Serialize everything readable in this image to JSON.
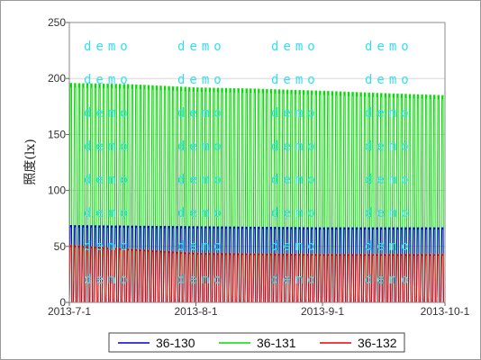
{
  "chart_data": {
    "type": "line",
    "title": "",
    "xlabel": "",
    "ylabel": "照度(lx)",
    "ylim": [
      0,
      250
    ],
    "yticks": [
      "0",
      "50",
      "100",
      "150",
      "200",
      "250"
    ],
    "xticks": [
      "2013-7-1",
      "2013-8-1",
      "2013-9-1",
      "2013-10-1"
    ],
    "xlim": [
      "2013-07-01",
      "2013-10-01"
    ],
    "grid": true,
    "legend_position": "bottom",
    "watermark": "demo",
    "series": [
      {
        "name": "36-131",
        "color": "#00dd00",
        "daily_peak": [
          {
            "date": "2013-07-01",
            "value": 196
          },
          {
            "date": "2013-07-15",
            "value": 195
          },
          {
            "date": "2013-08-01",
            "value": 192
          },
          {
            "date": "2013-08-15",
            "value": 191
          },
          {
            "date": "2013-09-01",
            "value": 189
          },
          {
            "date": "2013-09-15",
            "value": 187
          },
          {
            "date": "2013-10-01",
            "value": 185
          }
        ],
        "night_low": 0
      },
      {
        "name": "36-130",
        "color": "#0000cc",
        "daily_peak": [
          {
            "date": "2013-07-01",
            "value": 69
          },
          {
            "date": "2013-08-01",
            "value": 68
          },
          {
            "date": "2013-09-01",
            "value": 67
          },
          {
            "date": "2013-10-01",
            "value": 67
          }
        ],
        "night_low": 0
      },
      {
        "name": "36-132",
        "color": "#ee0000",
        "daily_peak": [
          {
            "date": "2013-07-01",
            "value": 51
          },
          {
            "date": "2013-08-01",
            "value": 44
          },
          {
            "date": "2013-09-01",
            "value": 43
          },
          {
            "date": "2013-10-01",
            "value": 43
          }
        ],
        "night_low": 0
      }
    ],
    "legend": [
      "36-130",
      "36-131",
      "36-132"
    ],
    "legend_colors": [
      "#0000cc",
      "#00dd00",
      "#ee0000"
    ]
  }
}
